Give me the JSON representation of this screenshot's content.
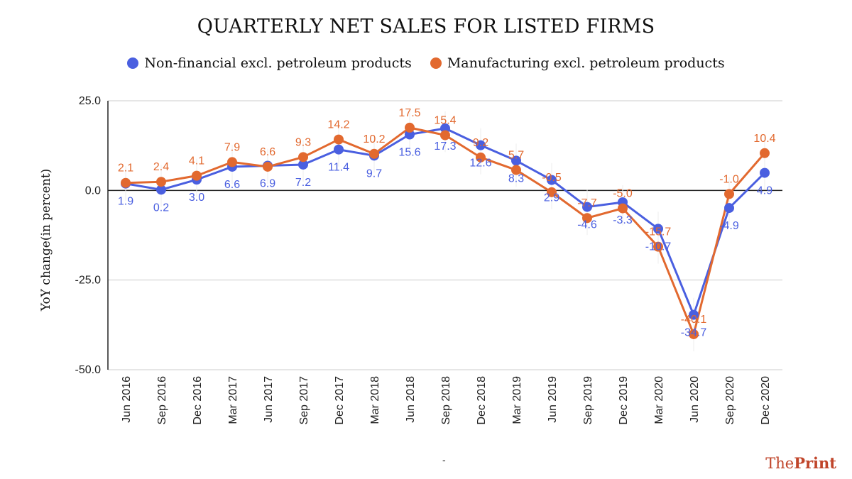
{
  "chart_data": {
    "type": "line",
    "title": "QUARTERLY NET SALES FOR LISTED FIRMS",
    "xlabel": "",
    "ylabel": "YoY change(in percent)",
    "ylim": [
      -50,
      25
    ],
    "yticks": [
      25,
      0,
      -25,
      -50
    ],
    "ytick_labels": [
      "25.0",
      "0.0",
      "-25.0",
      "-50.0"
    ],
    "grid": true,
    "legend_position": "top-center",
    "categories": [
      "Jun 2016",
      "Sep 2016",
      "Dec 2016",
      "Mar 2017",
      "Jun 2017",
      "Sep 2017",
      "Dec 2017",
      "Mar 2018",
      "Jun 2018",
      "Sep 2018",
      "Dec 2018",
      "Mar 2019",
      "Jun 2019",
      "Sep 2019",
      "Dec 2019",
      "Mar 2020",
      "Jun 2020",
      "Sep 2020",
      "Dec 2020"
    ],
    "series": [
      {
        "name": "Non-financial excl. petroleum products",
        "color": "#4a5fe0",
        "values": [
          1.9,
          0.2,
          3.0,
          6.6,
          6.9,
          7.2,
          11.4,
          9.7,
          15.6,
          17.3,
          12.6,
          8.3,
          2.9,
          -4.6,
          -3.3,
          -10.7,
          -34.7,
          -4.9,
          4.9
        ],
        "labels": [
          "1.9",
          "0.2",
          "3.0",
          "6.6",
          "6.9",
          "7.2",
          "11.4",
          "9.7",
          "15.6",
          "17.3",
          "12.6",
          "8.3",
          "2.9",
          "-4.6",
          "-3.3",
          "-10.7",
          "-34.7",
          "-4.9",
          "4.9"
        ]
      },
      {
        "name": "Manufacturing excl. petroleum products",
        "color": "#e2692f",
        "values": [
          2.1,
          2.4,
          4.1,
          7.9,
          6.6,
          9.3,
          14.2,
          10.2,
          17.5,
          15.4,
          9.2,
          5.7,
          -0.5,
          -7.7,
          -5.0,
          -15.7,
          -40.1,
          -1.0,
          10.4
        ],
        "labels": [
          "2.1",
          "2.4",
          "4.1",
          "7.9",
          "6.6",
          "9.3",
          "14.2",
          "10.2",
          "17.5",
          "15.4",
          "9.2",
          "5.7",
          "-0.5",
          "-7.7",
          "-5.0",
          "-15.7",
          "-40.1",
          "-1.0",
          "10.4"
        ]
      }
    ]
  },
  "footer": {
    "note": "-",
    "brand_prefix": "The",
    "brand_suffix": "Print"
  }
}
